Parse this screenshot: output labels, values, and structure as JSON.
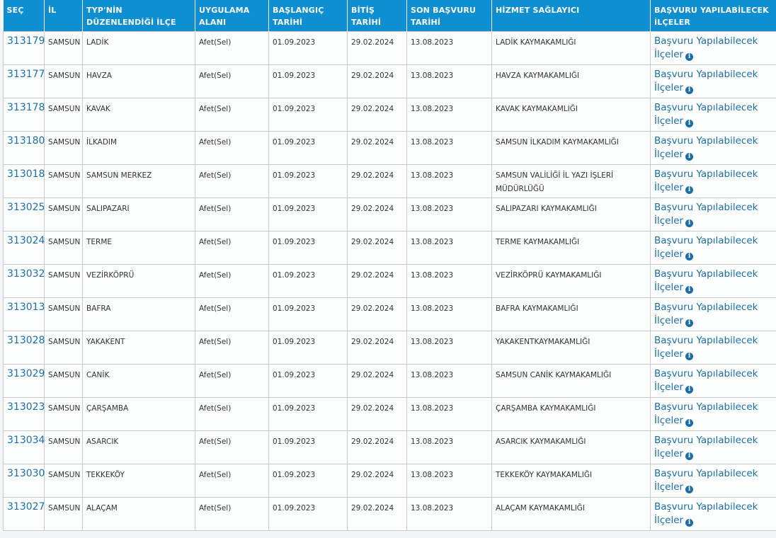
{
  "table": {
    "header": [
      "SEÇ",
      "İL",
      "TYP'NİN DÜZENLENDİĞİ İLÇE",
      "UYGULAMA ALANI",
      "BAŞLANGIÇ TARİHİ",
      "BİTİŞ TARİHİ",
      "SON BAŞVURU TARİHİ",
      "HİZMET SAĞLAYICI",
      "BAŞVURU YAPILABİLECEK İLÇELER"
    ],
    "rows": [
      [
        "313179",
        "SAMSUN",
        "LADİK",
        "Afet(Sel)",
        "01.09.2023",
        "29.02.2024",
        "13.08.2023",
        "LADİK KAYMAKAMLIĞI",
        "Başvuru Yapılabilecek İlçeler"
      ],
      [
        "313177",
        "SAMSUN",
        "HAVZA",
        "Afet(Sel)",
        "01.09.2023",
        "29.02.2024",
        "13.08.2023",
        "HAVZA KAYMAKAMLIĞI",
        "Başvuru Yapılabilecek İlçeler"
      ],
      [
        "313178",
        "SAMSUN",
        "KAVAK",
        "Afet(Sel)",
        "01.09.2023",
        "29.02.2024",
        "13.08.2023",
        "KAVAK KAYMAKAMLIĞI",
        "Başvuru Yapılabilecek İlçeler"
      ],
      [
        "313180",
        "SAMSUN",
        "İLKADIM",
        "Afet(Sel)",
        "01.09.2023",
        "29.02.2024",
        "13.08.2023",
        "SAMSUN İLKADIM KAYMAKAMLIĞI",
        "Başvuru Yapılabilecek İlçeler"
      ],
      [
        "313018",
        "SAMSUN",
        "SAMSUN MERKEZ",
        "Afet(Sel)",
        "01.09.2023",
        "29.02.2024",
        "13.08.2023",
        "SAMSUN VALİLİĞİ İL YAZI İŞLERİ MÜDÜRLÜĞÜ",
        "Başvuru Yapılabilecek İlçeler"
      ],
      [
        "313025",
        "SAMSUN",
        "SALIPAZARI",
        "Afet(Sel)",
        "01.09.2023",
        "29.02.2024",
        "13.08.2023",
        "SALIPAZARI KAYMAKAMLIĞI",
        "Başvuru Yapılabilecek İlçeler"
      ],
      [
        "313024",
        "SAMSUN",
        "TERME",
        "Afet(Sel)",
        "01.09.2023",
        "29.02.2024",
        "13.08.2023",
        "TERME KAYMAKAMLIĞI",
        "Başvuru Yapılabilecek İlçeler"
      ],
      [
        "313032",
        "SAMSUN",
        "VEZİRKÖPRÜ",
        "Afet(Sel)",
        "01.09.2023",
        "29.02.2024",
        "13.08.2023",
        "VEZİRKÖPRÜ KAYMAKAMLIĞI",
        "Başvuru Yapılabilecek İlçeler"
      ],
      [
        "313013",
        "SAMSUN",
        "BAFRA",
        "Afet(Sel)",
        "01.09.2023",
        "29.02.2024",
        "13.08.2023",
        "BAFRA KAYMAKAMLIĞI",
        "Başvuru Yapılabilecek İlçeler"
      ],
      [
        "313028",
        "SAMSUN",
        "YAKAKENT",
        "Afet(Sel)",
        "01.09.2023",
        "29.02.2024",
        "13.08.2023",
        "YAKAKENTKAYMAKAMLIĞI",
        "Başvuru Yapılabilecek İlçeler"
      ],
      [
        "313029",
        "SAMSUN",
        "CANİK",
        "Afet(Sel)",
        "01.09.2023",
        "29.02.2024",
        "13.08.2023",
        "SAMSUN CANİK KAYMAKAMLIĞI",
        "Başvuru Yapılabilecek İlçeler"
      ],
      [
        "313023",
        "SAMSUN",
        "ÇARŞAMBA",
        "Afet(Sel)",
        "01.09.2023",
        "29.02.2024",
        "13.08.2023",
        "ÇARŞAMBA KAYMAKAMLIĞI",
        "Başvuru Yapılabilecek İlçeler"
      ],
      [
        "313034",
        "SAMSUN",
        "ASARCIK",
        "Afet(Sel)",
        "01.09.2023",
        "29.02.2024",
        "13.08.2023",
        "ASARCIK KAYMAKAMLIĞI",
        "Başvuru Yapılabilecek İlçeler"
      ],
      [
        "313030",
        "SAMSUN",
        "TEKKEKÖY",
        "Afet(Sel)",
        "01.09.2023",
        "29.02.2024",
        "13.08.2023",
        "TEKKEKÖY KAYMAKAMLIĞI",
        "Başvuru Yapılabilecek İlçeler"
      ],
      [
        "313027",
        "SAMSUN",
        "ALAÇAM",
        "Afet(Sel)",
        "01.09.2023",
        "29.02.2024",
        "13.08.2023",
        "ALAÇAM KAYMAKAMLIĞI",
        "Başvuru Yapılabilecek İlçeler"
      ]
    ]
  }
}
